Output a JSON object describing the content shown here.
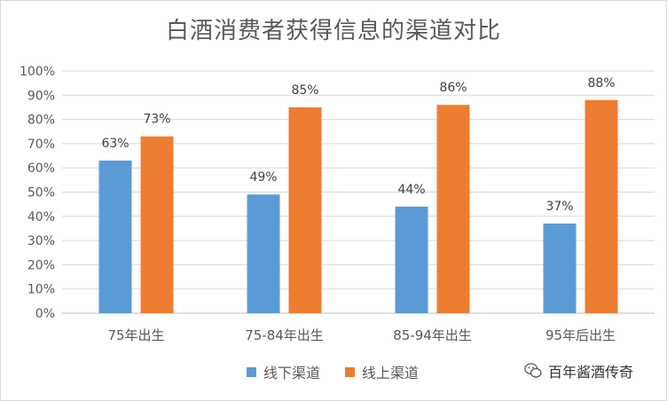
{
  "chart_data": {
    "type": "bar",
    "title": "白酒消费者获得信息的渠道对比",
    "categories": [
      "75年出生",
      "75-84年出生",
      "85-94年出生",
      "95年后出生"
    ],
    "series": [
      {
        "name": "线下渠道",
        "color": "#5b9bd5",
        "values": [
          63,
          49,
          44,
          37
        ],
        "labels": [
          "63%",
          "49%",
          "44%",
          "37%"
        ]
      },
      {
        "name": "线上渠道",
        "color": "#ed7d31",
        "values": [
          73,
          85,
          86,
          88
        ],
        "labels": [
          "73%",
          "85%",
          "86%",
          "88%"
        ]
      }
    ],
    "ylim": [
      0,
      100
    ],
    "yticks": [
      "0%",
      "10%",
      "20%",
      "30%",
      "40%",
      "50%",
      "60%",
      "70%",
      "80%",
      "90%",
      "100%"
    ],
    "grid": true,
    "legend_position": "bottom"
  },
  "watermark": {
    "text": "百年酱酒传奇",
    "icon": "wechat-icon"
  }
}
